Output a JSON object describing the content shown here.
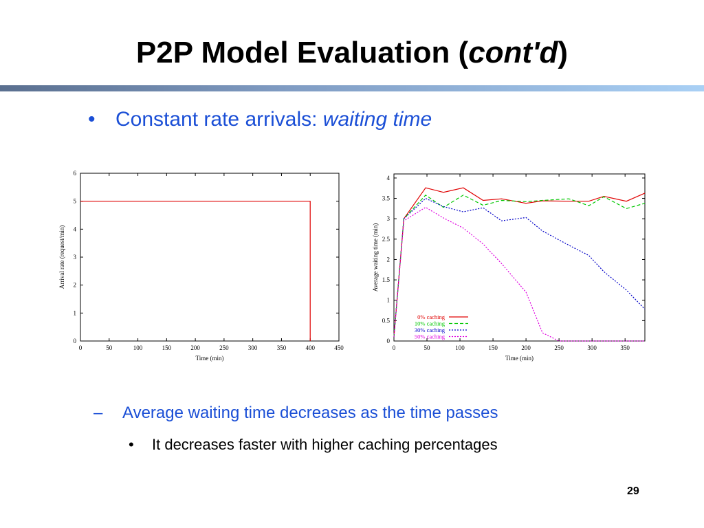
{
  "slide": {
    "title_main": "P2P Model Evaluation (",
    "title_italic": "cont'd",
    "title_end": ")",
    "bullet": {
      "marker": "•",
      "text": "Constant rate arrivals: ",
      "italic": "waiting time"
    },
    "sub_bullet": {
      "marker": "–",
      "text": "Average waiting time decreases as the time passes"
    },
    "sub_sub_bullet": {
      "marker": "•",
      "text": "It decreases faster with higher caching percentages"
    },
    "page_number": "29"
  },
  "colors": {
    "bullet_text": "#1b4fd6",
    "red": "#e00000",
    "green": "#00c800",
    "blue": "#0000c8",
    "magenta": "#e000e0"
  },
  "chart_data": [
    {
      "type": "line",
      "xlabel": "Time (min)",
      "ylabel": "Arrival rate (request/min)",
      "xlim": [
        0,
        450
      ],
      "ylim": [
        0,
        6
      ],
      "xticks": [
        0,
        50,
        100,
        150,
        200,
        250,
        300,
        350,
        400,
        450
      ],
      "yticks": [
        0,
        1,
        2,
        3,
        4,
        5,
        6
      ],
      "grid": false,
      "series": [
        {
          "color": "#e00000",
          "style": "solid",
          "x": [
            0,
            400,
            400
          ],
          "y": [
            5,
            5,
            0
          ]
        }
      ]
    },
    {
      "type": "line",
      "xlabel": "Time (min)",
      "ylabel": "Average waiting time (min)",
      "xlim": [
        0,
        380
      ],
      "ylim": [
        0,
        4.1
      ],
      "xticks": [
        0,
        50,
        100,
        150,
        200,
        250,
        300,
        350
      ],
      "yticks": [
        0,
        0.5,
        1,
        1.5,
        2,
        2.5,
        3,
        3.5,
        4
      ],
      "grid": false,
      "legend": "bottom-left",
      "series": [
        {
          "name": "0% caching",
          "color": "#e00000",
          "style": "solid",
          "x": [
            0,
            15,
            48,
            75,
            105,
            135,
            163,
            200,
            225,
            265,
            295,
            318,
            352,
            380
          ],
          "y": [
            0.1,
            3.0,
            3.76,
            3.65,
            3.76,
            3.45,
            3.49,
            3.38,
            3.44,
            3.43,
            3.43,
            3.55,
            3.43,
            3.63
          ]
        },
        {
          "name": "10% caching",
          "color": "#00c800",
          "style": "dashed",
          "x": [
            0,
            15,
            48,
            75,
            105,
            135,
            163,
            200,
            225,
            265,
            295,
            318,
            352,
            380
          ],
          "y": [
            0.1,
            3.0,
            3.58,
            3.28,
            3.58,
            3.33,
            3.45,
            3.42,
            3.45,
            3.49,
            3.32,
            3.54,
            3.25,
            3.38
          ]
        },
        {
          "name": "30% caching",
          "color": "#0000c8",
          "style": "dotted",
          "x": [
            0,
            15,
            48,
            75,
            105,
            135,
            163,
            200,
            225,
            265,
            295,
            318,
            352,
            380
          ],
          "y": [
            0.1,
            3.0,
            3.5,
            3.3,
            3.17,
            3.27,
            2.95,
            3.03,
            2.7,
            2.35,
            2.1,
            1.7,
            1.25,
            0.78
          ]
        },
        {
          "name": "50% caching",
          "color": "#e000e0",
          "style": "dotted",
          "x": [
            0,
            15,
            48,
            75,
            105,
            135,
            163,
            200,
            225,
            250,
            295,
            318,
            352,
            380
          ],
          "y": [
            0.1,
            2.95,
            3.28,
            3.02,
            2.77,
            2.38,
            1.9,
            1.2,
            0.2,
            0.0,
            0.0,
            0.0,
            0.0,
            0.0
          ]
        }
      ]
    }
  ]
}
